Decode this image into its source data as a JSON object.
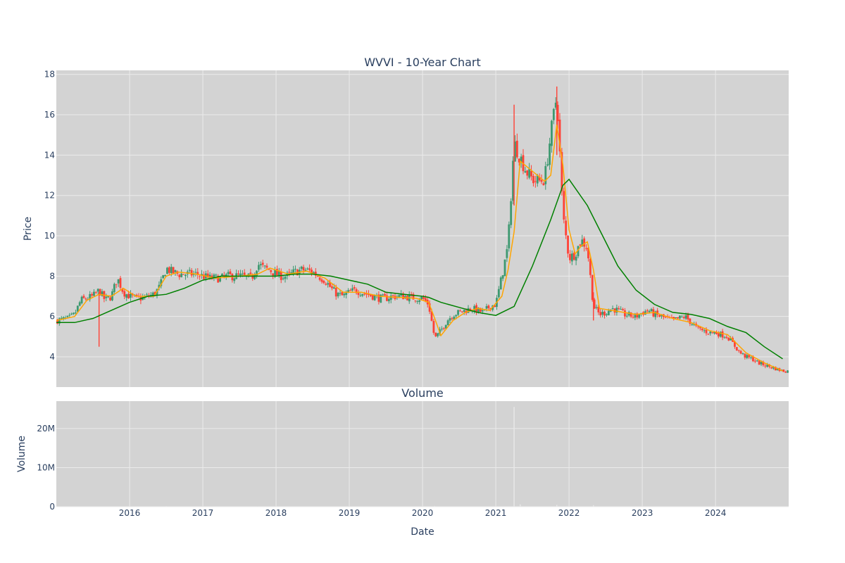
{
  "colors": {
    "plot_bg": "#d3d3d3",
    "grid": "#ebebeb",
    "increasing": "#3d9970",
    "decreasing": "#ff4136",
    "ma_short": "#ffa500",
    "ma_long": "#008000",
    "volume_bar": "#e8e8e8",
    "text": "#2a3f5f"
  },
  "chart_data": [
    {
      "type": "candlestick",
      "title": "WVVI - 10-Year Chart",
      "xlabel": "",
      "ylabel": "Price",
      "x_range": [
        "2015-01-01",
        "2024-12-31"
      ],
      "ylim": [
        2.5,
        18.2
      ],
      "y_ticks": [
        4,
        6,
        8,
        10,
        12,
        14,
        16,
        18
      ],
      "x_ticks": [
        "2016",
        "2017",
        "2018",
        "2019",
        "2020",
        "2021",
        "2022",
        "2023",
        "2024"
      ],
      "grid": true,
      "series": [
        {
          "name": "",
          "kind": "candlestick",
          "points": [
            [
              "2015-01",
              5.8
            ],
            [
              "2015-02",
              5.85
            ],
            [
              "2015-03",
              5.9
            ],
            [
              "2015-04",
              6.1
            ],
            [
              "2015-05",
              6.8
            ],
            [
              "2015-06",
              6.9
            ],
            [
              "2015-07",
              7.0
            ],
            [
              "2015-08",
              7.3
            ],
            [
              "2015-09",
              6.8
            ],
            [
              "2015-10",
              7.0
            ],
            [
              "2015-11",
              7.9
            ],
            [
              "2015-12",
              7.2
            ],
            [
              "2016-01",
              7.0
            ],
            [
              "2016-02",
              6.9
            ],
            [
              "2016-03",
              6.9
            ],
            [
              "2016-04",
              7.0
            ],
            [
              "2016-05",
              7.1
            ],
            [
              "2016-06",
              7.5
            ],
            [
              "2016-07",
              8.4
            ],
            [
              "2016-08",
              8.2
            ],
            [
              "2016-09",
              8.1
            ],
            [
              "2016-10",
              8.1
            ],
            [
              "2016-11",
              8.1
            ],
            [
              "2016-12",
              8.1
            ],
            [
              "2017-01",
              8.0
            ],
            [
              "2017-02",
              7.9
            ],
            [
              "2017-03",
              7.9
            ],
            [
              "2017-04",
              7.9
            ],
            [
              "2017-05",
              8.0
            ],
            [
              "2017-06",
              8.0
            ],
            [
              "2017-07",
              8.0
            ],
            [
              "2017-08",
              7.95
            ],
            [
              "2017-09",
              7.9
            ],
            [
              "2017-10",
              8.6
            ],
            [
              "2017-11",
              8.4
            ],
            [
              "2017-12",
              8.3
            ],
            [
              "2018-01",
              8.1
            ],
            [
              "2018-02",
              8.0
            ],
            [
              "2018-03",
              8.0
            ],
            [
              "2018-04",
              8.2
            ],
            [
              "2018-05",
              8.3
            ],
            [
              "2018-06",
              8.3
            ],
            [
              "2018-07",
              8.2
            ],
            [
              "2018-08",
              8.0
            ],
            [
              "2018-09",
              7.8
            ],
            [
              "2018-10",
              7.4
            ],
            [
              "2018-11",
              7.1
            ],
            [
              "2018-12",
              7.0
            ],
            [
              "2019-01",
              7.2
            ],
            [
              "2019-02",
              7.3
            ],
            [
              "2019-03",
              7.2
            ],
            [
              "2019-04",
              7.1
            ],
            [
              "2019-05",
              7.0
            ],
            [
              "2019-06",
              6.9
            ],
            [
              "2019-07",
              6.9
            ],
            [
              "2019-08",
              7.0
            ],
            [
              "2019-09",
              7.0
            ],
            [
              "2019-10",
              7.0
            ],
            [
              "2019-11",
              6.95
            ],
            [
              "2019-12",
              6.9
            ],
            [
              "2020-01",
              6.9
            ],
            [
              "2020-02",
              6.6
            ],
            [
              "2020-03",
              4.9
            ],
            [
              "2020-04",
              5.3
            ],
            [
              "2020-05",
              5.8
            ],
            [
              "2020-06",
              6.1
            ],
            [
              "2020-07",
              6.2
            ],
            [
              "2020-08",
              6.3
            ],
            [
              "2020-09",
              6.4
            ],
            [
              "2020-10",
              6.3
            ],
            [
              "2020-11",
              6.2
            ],
            [
              "2020-12",
              6.5
            ],
            [
              "2021-01",
              6.6
            ],
            [
              "2021-02",
              8.0
            ],
            [
              "2021-03",
              9.5
            ],
            [
              "2021-04",
              14.6
            ],
            [
              "2021-05",
              13.9
            ],
            [
              "2021-06",
              13.2
            ],
            [
              "2021-07",
              12.8
            ],
            [
              "2021-08",
              12.7
            ],
            [
              "2021-09",
              12.8
            ],
            [
              "2021-10",
              15.0
            ],
            [
              "2021-11",
              17.0
            ],
            [
              "2021-12",
              11.0
            ],
            [
              "2022-01",
              8.9
            ],
            [
              "2022-02",
              9.1
            ],
            [
              "2022-03",
              9.8
            ],
            [
              "2022-04",
              9.4
            ],
            [
              "2022-05",
              6.5
            ],
            [
              "2022-06",
              6.1
            ],
            [
              "2022-07",
              6.2
            ],
            [
              "2022-08",
              6.4
            ],
            [
              "2022-09",
              6.3
            ],
            [
              "2022-10",
              6.1
            ],
            [
              "2022-11",
              6.05
            ],
            [
              "2022-12",
              6.0
            ],
            [
              "2023-01",
              6.2
            ],
            [
              "2023-02",
              6.3
            ],
            [
              "2023-03",
              6.1
            ],
            [
              "2023-04",
              6.0
            ],
            [
              "2023-05",
              5.9
            ],
            [
              "2023-06",
              5.8
            ],
            [
              "2023-07",
              5.9
            ],
            [
              "2023-08",
              6.0
            ],
            [
              "2023-09",
              5.7
            ],
            [
              "2023-10",
              5.4
            ],
            [
              "2023-11",
              5.3
            ],
            [
              "2023-12",
              5.2
            ],
            [
              "2024-01",
              5.2
            ],
            [
              "2024-02",
              5.1
            ],
            [
              "2024-03",
              5.0
            ],
            [
              "2024-04",
              4.6
            ],
            [
              "2024-05",
              4.2
            ],
            [
              "2024-06",
              4.0
            ],
            [
              "2024-07",
              3.9
            ],
            [
              "2024-08",
              3.7
            ],
            [
              "2024-09",
              3.6
            ],
            [
              "2024-10",
              3.5
            ],
            [
              "2024-11",
              3.4
            ],
            [
              "2024-12",
              3.3
            ]
          ],
          "spikes": [
            [
              "2015-08",
              4.5,
              7.2
            ],
            [
              "2021-04",
              11.5,
              16.5
            ],
            [
              "2021-11",
              14.0,
              17.4
            ],
            [
              "2022-05",
              5.8,
              7.2
            ]
          ]
        },
        {
          "name": "",
          "kind": "line",
          "color_key": "ma_short",
          "points": [
            [
              "2015-01",
              5.8
            ],
            [
              "2015-04",
              6.0
            ],
            [
              "2015-06",
              6.8
            ],
            [
              "2015-08",
              7.1
            ],
            [
              "2015-10",
              7.0
            ],
            [
              "2015-12",
              7.4
            ],
            [
              "2016-02",
              7.0
            ],
            [
              "2016-05",
              7.0
            ],
            [
              "2016-07",
              8.0
            ],
            [
              "2016-09",
              8.2
            ],
            [
              "2016-12",
              8.1
            ],
            [
              "2017-03",
              7.9
            ],
            [
              "2017-07",
              8.0
            ],
            [
              "2017-10",
              8.1
            ],
            [
              "2017-12",
              8.4
            ],
            [
              "2018-03",
              8.1
            ],
            [
              "2018-06",
              8.25
            ],
            [
              "2018-09",
              7.9
            ],
            [
              "2018-12",
              7.2
            ],
            [
              "2019-03",
              7.2
            ],
            [
              "2019-06",
              7.0
            ],
            [
              "2019-09",
              6.95
            ],
            [
              "2019-12",
              6.9
            ],
            [
              "2020-02",
              6.7
            ],
            [
              "2020-03",
              5.9
            ],
            [
              "2020-04",
              5.05
            ],
            [
              "2020-06",
              5.8
            ],
            [
              "2020-08",
              6.2
            ],
            [
              "2020-10",
              6.4
            ],
            [
              "2020-12",
              6.3
            ],
            [
              "2021-02",
              7.0
            ],
            [
              "2021-03",
              8.3
            ],
            [
              "2021-04",
              10.2
            ],
            [
              "2021-05",
              13.7
            ],
            [
              "2021-07",
              13.2
            ],
            [
              "2021-09",
              12.7
            ],
            [
              "2021-10",
              13.0
            ],
            [
              "2021-11",
              15.5
            ],
            [
              "2021-12",
              13.5
            ],
            [
              "2022-01",
              10.3
            ],
            [
              "2022-02",
              9.1
            ],
            [
              "2022-03",
              9.5
            ],
            [
              "2022-04",
              9.7
            ],
            [
              "2022-05",
              8.3
            ],
            [
              "2022-06",
              6.4
            ],
            [
              "2022-08",
              6.3
            ],
            [
              "2022-10",
              6.2
            ],
            [
              "2022-12",
              6.1
            ],
            [
              "2023-03",
              6.2
            ],
            [
              "2023-06",
              5.9
            ],
            [
              "2023-09",
              5.7
            ],
            [
              "2023-12",
              5.3
            ],
            [
              "2024-03",
              5.1
            ],
            [
              "2024-06",
              4.2
            ],
            [
              "2024-09",
              3.7
            ],
            [
              "2024-12",
              3.3
            ]
          ]
        },
        {
          "name": "",
          "kind": "line",
          "color_key": "ma_long",
          "points": [
            [
              "2015-01",
              5.7
            ],
            [
              "2015-04",
              5.7
            ],
            [
              "2015-07",
              5.9
            ],
            [
              "2015-10",
              6.3
            ],
            [
              "2016-01",
              6.7
            ],
            [
              "2016-04",
              7.0
            ],
            [
              "2016-07",
              7.1
            ],
            [
              "2016-10",
              7.4
            ],
            [
              "2017-01",
              7.8
            ],
            [
              "2017-04",
              8.0
            ],
            [
              "2017-07",
              8.0
            ],
            [
              "2017-10",
              8.0
            ],
            [
              "2018-01",
              8.0
            ],
            [
              "2018-04",
              8.1
            ],
            [
              "2018-07",
              8.1
            ],
            [
              "2018-10",
              8.0
            ],
            [
              "2019-01",
              7.8
            ],
            [
              "2019-04",
              7.6
            ],
            [
              "2019-07",
              7.2
            ],
            [
              "2019-10",
              7.1
            ],
            [
              "2020-01",
              7.0
            ],
            [
              "2020-02",
              6.95
            ],
            [
              "2020-04",
              6.7
            ],
            [
              "2020-07",
              6.45
            ],
            [
              "2020-10",
              6.2
            ],
            [
              "2021-01",
              6.05
            ],
            [
              "2021-04",
              6.5
            ],
            [
              "2021-07",
              8.5
            ],
            [
              "2021-10",
              10.8
            ],
            [
              "2021-12",
              12.5
            ],
            [
              "2022-01",
              12.8
            ],
            [
              "2022-04",
              11.5
            ],
            [
              "2022-07",
              9.7
            ],
            [
              "2022-09",
              8.5
            ],
            [
              "2022-12",
              7.3
            ],
            [
              "2023-03",
              6.6
            ],
            [
              "2023-06",
              6.2
            ],
            [
              "2023-09",
              6.1
            ],
            [
              "2023-12",
              5.9
            ],
            [
              "2024-03",
              5.5
            ],
            [
              "2024-06",
              5.2
            ],
            [
              "2024-09",
              4.5
            ],
            [
              "2024-12",
              3.9
            ]
          ]
        }
      ]
    },
    {
      "type": "bar",
      "title": "Volume",
      "xlabel": "Date",
      "ylabel": "Volume",
      "ylim": [
        0,
        27000000
      ],
      "y_ticks": [
        0,
        10000000,
        20000000
      ],
      "y_tick_labels": [
        "0",
        "10M",
        "20M"
      ],
      "x_ticks": [
        "2016",
        "2017",
        "2018",
        "2019",
        "2020",
        "2021",
        "2022",
        "2023",
        "2024"
      ],
      "grid": true,
      "series": [
        {
          "name": "",
          "points": [
            [
              "2015-08",
              120000
            ],
            [
              "2016-07",
              150000
            ],
            [
              "2017-10",
              90000
            ],
            [
              "2020-03",
              200000
            ],
            [
              "2021-04",
              25500000
            ],
            [
              "2021-05",
              600000
            ],
            [
              "2021-11",
              450000
            ],
            [
              "2022-05",
              400000
            ]
          ]
        }
      ]
    }
  ]
}
